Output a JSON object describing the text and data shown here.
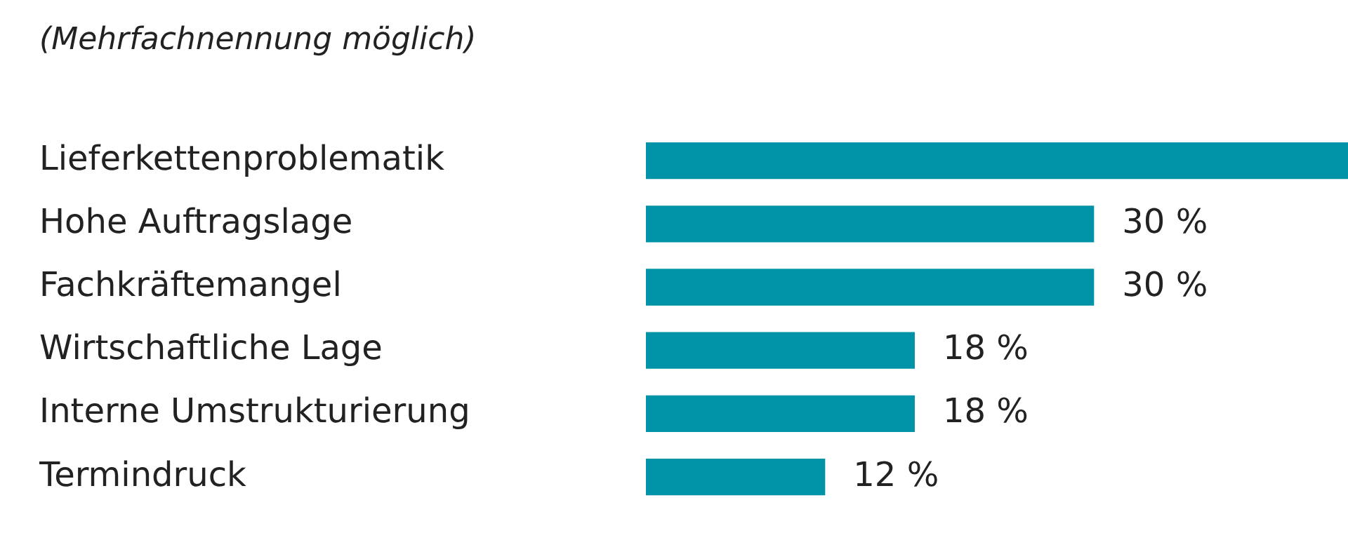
{
  "chart_data": {
    "type": "bar",
    "orientation": "horizontal",
    "subtitle": "(Mehrfachnennung möglich)",
    "categories": [
      "Lieferkettenproblematik",
      "Hohe Auftragslage",
      "Fachkräftemangel",
      "Wirtschaftliche Lage",
      "Interne Umstrukturierung",
      "Termindruck"
    ],
    "values": [
      47,
      30,
      30,
      18,
      18,
      12
    ],
    "value_labels": [
      null,
      "30 %",
      "30 %",
      "18 %",
      "18 %",
      "12 %"
    ],
    "color": "#0093a8"
  }
}
